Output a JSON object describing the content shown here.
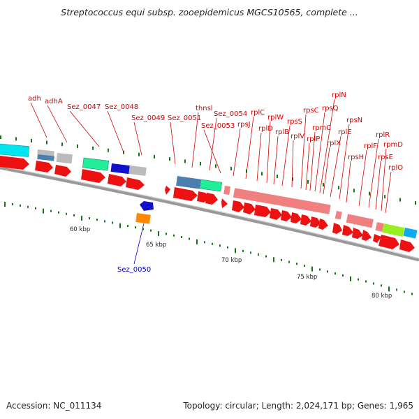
{
  "title": "Streptococcus equi subsp. zooepidemicus MGCS10565, complete ...",
  "footer": {
    "accession": "Accession: NC_011134",
    "topology": "Topology: circular; Length: 2,024,171 bp; Genes: 1,965"
  },
  "colors": {
    "label_red": "#d40000",
    "label_blue": "#0000cc",
    "cds_red": "#ee1111",
    "backbone": "#888888",
    "tick_green": "#117711"
  },
  "scale_labels": [
    "60 kbp",
    "65 kbp",
    "70 kbp",
    "75 kbp",
    "80 kbp"
  ],
  "gene_labels": [
    "adh",
    "adhA",
    "Sez_0047",
    "Sez_0048",
    "Sez_0049",
    "Sez_0051",
    "thnsl",
    "Sez_0054",
    "Sez_0053",
    "rpsJ",
    "rplC",
    "rplD",
    "rplW",
    "rplB",
    "rpsS",
    "rplV",
    "rpsC",
    "rplP",
    "rpmC",
    "rpsQ",
    "rplN",
    "rplX",
    "rplE",
    "rpsN",
    "rpsH",
    "rplF",
    "rplR",
    "rpsE",
    "rpmD",
    "rplO"
  ],
  "other_label": "Sez_0050"
}
